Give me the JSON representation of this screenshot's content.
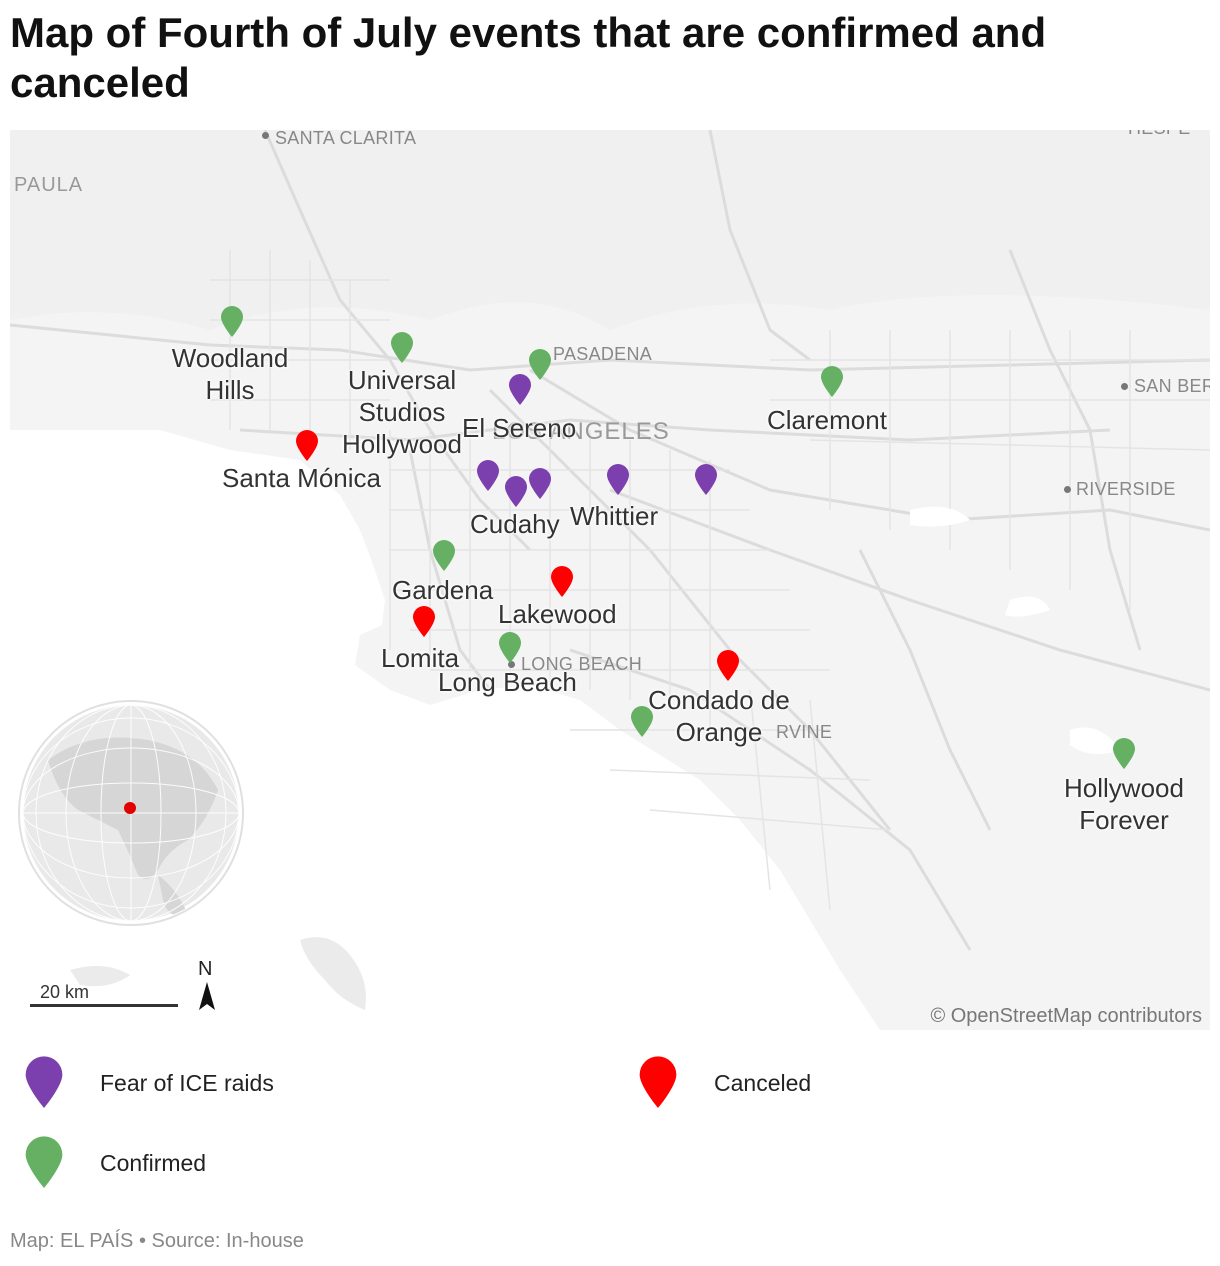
{
  "title": "Map of Fourth of July events that are confirmed and canceled",
  "colors": {
    "fear": "#7b3fae",
    "canceled": "#ff0000",
    "confirmed": "#65b063",
    "land": "#f4f4f4",
    "water": "#ffffff",
    "roads": "#d9d9d9"
  },
  "map": {
    "basemap_labels": {
      "santa_clarita": "SANTA CLARITA",
      "paula": "PAULA",
      "hesperia": "HESPE",
      "pasadena": "PASADENA",
      "san_bernardino": "SAN BER",
      "los_angeles": "LOS ANGELES",
      "riverside": "RIVERSIDE",
      "long_beach": "LONG BEACH",
      "irvine": "RVINE"
    },
    "attribution": "© OpenStreetMap contributors",
    "scale_label": "20 km",
    "north_label": "N"
  },
  "events": [
    {
      "label": "Woodland Hills",
      "status": "confirmed"
    },
    {
      "label": "Universal Studios Hollywood",
      "status": "confirmed"
    },
    {
      "label": "Santa Mónica",
      "status": "canceled"
    },
    {
      "label": "El Sereno",
      "status": "fear"
    },
    {
      "label": "Claremont",
      "status": "confirmed"
    },
    {
      "label": "Cudahy",
      "status": "fear"
    },
    {
      "label": "Whittier",
      "status": "fear"
    },
    {
      "label": "Gardena",
      "status": "confirmed"
    },
    {
      "label": "Lakewood",
      "status": "canceled"
    },
    {
      "label": "Lomita",
      "status": "canceled"
    },
    {
      "label": "Long Beach",
      "status": "confirmed"
    },
    {
      "label": "Condado de Orange",
      "status": "canceled"
    },
    {
      "label": "Hollywood Forever",
      "status": "confirmed"
    }
  ],
  "legend": [
    {
      "label": "Fear of ICE raids",
      "status": "fear"
    },
    {
      "label": "Canceled",
      "status": "canceled"
    },
    {
      "label": "Confirmed",
      "status": "confirmed"
    }
  ],
  "footer": "Map: EL PAÍS • Source: In-house"
}
